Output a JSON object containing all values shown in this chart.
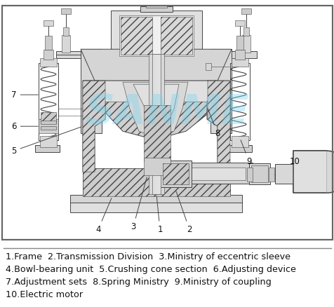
{
  "description_lines": [
    "1.Frame  2.Transmission Division  3.Ministry of eccentric sleeve",
    "4.Bowl-bearing unit  5.Crushing cone section  6.Adjusting device",
    "7.Adjustment sets  8.Spring Ministry  9.Ministry of coupling",
    "10.Electric motor"
  ],
  "watermark_text": "SANME",
  "watermark_color": "#7ad4f0",
  "watermark_alpha": 0.38,
  "bg_color": "#ffffff",
  "border_color": "#888888",
  "lc": "#444444",
  "hatch_color": "#aaaaaa",
  "fill_light": "#e8e8e8",
  "fill_mid": "#d8d8d8",
  "fill_dark": "#c8c8c8",
  "text_color": "#111111",
  "desc_fontsize": 9.2,
  "label_fontsize": 8.5,
  "watermark_fontsize": 42,
  "fig_width": 4.77,
  "fig_height": 4.38,
  "dpi": 100
}
